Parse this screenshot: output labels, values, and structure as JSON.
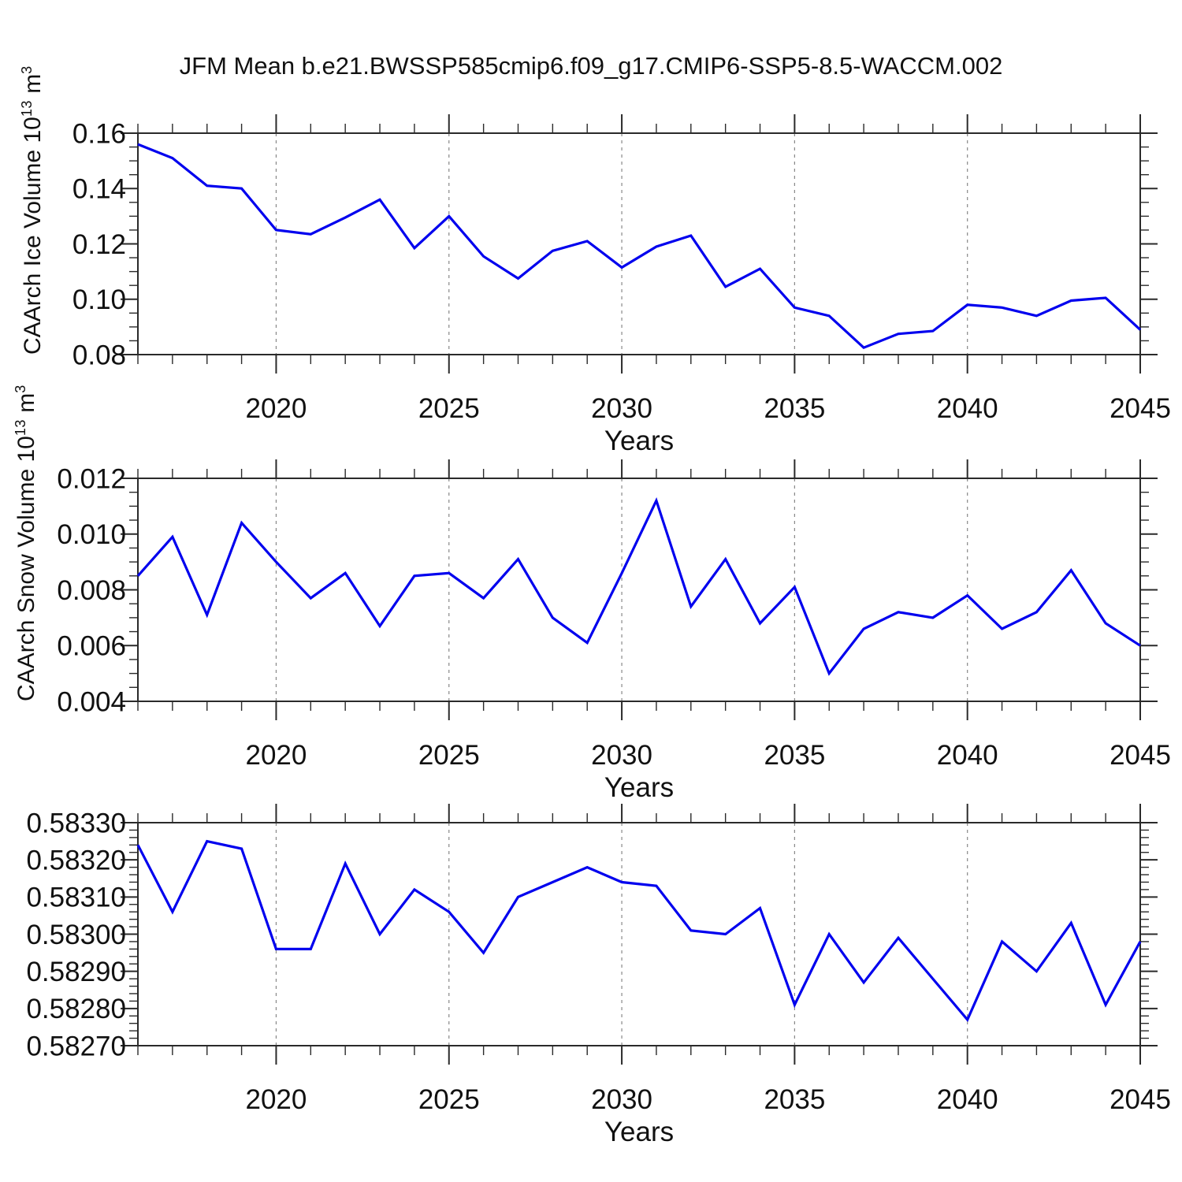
{
  "title": "JFM Mean b.e21.BWSSP585cmip6.f09_g17.CMIP6-SSP5-8.5-WACCM.002",
  "colors": {
    "line": "#0000EE",
    "grid": "#888888",
    "axis": "#2a2a2a",
    "text": "#111111"
  },
  "years": [
    2016,
    2017,
    2018,
    2019,
    2020,
    2021,
    2022,
    2023,
    2024,
    2025,
    2026,
    2027,
    2028,
    2029,
    2030,
    2031,
    2032,
    2033,
    2034,
    2035,
    2036,
    2037,
    2038,
    2039,
    2040,
    2041,
    2042,
    2043,
    2044,
    2045
  ],
  "chart_data": [
    {
      "type": "line",
      "title": "JFM Mean b.e21.BWSSP585cmip6.f09_g17.CMIP6-SSP5-8.5-WACCM.002",
      "ylabel": "CAArch Ice Volume 10^13 m^3",
      "ylabel_parts": [
        {
          "t": "CAArch Ice Volume 10"
        },
        {
          "t": "13",
          "sup": true
        },
        {
          "t": " m"
        },
        {
          "t": "3",
          "sup": true
        }
      ],
      "xlabel": "Years",
      "xlim": [
        2016,
        2045
      ],
      "ylim": [
        0.08,
        0.16
      ],
      "xticks_major": [
        2020,
        2025,
        2030,
        2035,
        2040,
        2045
      ],
      "xminor_step": 1,
      "ytick_step": 0.02,
      "yminor_step": 0.005,
      "ytick_decimals": 2,
      "grid_x": [
        2020,
        2025,
        2030,
        2035,
        2040
      ],
      "values": [
        0.156,
        0.151,
        0.141,
        0.14,
        0.125,
        0.1235,
        0.1295,
        0.136,
        0.1185,
        0.13,
        0.1155,
        0.1075,
        0.1175,
        0.121,
        0.1115,
        0.119,
        0.123,
        0.1045,
        0.111,
        0.097,
        0.094,
        0.0825,
        0.0875,
        0.0885,
        0.098,
        0.097,
        0.094,
        0.0995,
        0.1005,
        0.089
      ]
    },
    {
      "type": "line",
      "ylabel": "CAArch Snow Volume 10^13 m^3",
      "ylabel_parts": [
        {
          "t": "CAArch Snow Volume 10"
        },
        {
          "t": "13",
          "sup": true
        },
        {
          "t": " m"
        },
        {
          "t": "3",
          "sup": true
        }
      ],
      "xlabel": "Years",
      "xlim": [
        2016,
        2045
      ],
      "ylim": [
        0.004,
        0.012
      ],
      "xticks_major": [
        2020,
        2025,
        2030,
        2035,
        2040,
        2045
      ],
      "xminor_step": 1,
      "ytick_step": 0.002,
      "yminor_step": 0.0005,
      "ytick_decimals": 3,
      "grid_x": [
        2020,
        2025,
        2030,
        2035,
        2040
      ],
      "values": [
        0.0085,
        0.0099,
        0.0071,
        0.0104,
        0.009,
        0.0077,
        0.0086,
        0.0067,
        0.0085,
        0.0086,
        0.0077,
        0.0091,
        0.007,
        0.0061,
        0.0086,
        0.0112,
        0.0074,
        0.0091,
        0.0068,
        0.0081,
        0.005,
        0.0066,
        0.0072,
        0.007,
        0.0078,
        0.0066,
        0.0072,
        0.0087,
        0.0068,
        0.006
      ]
    },
    {
      "type": "line",
      "ylabel": "",
      "ylabel_parts": [],
      "xlabel": "Years",
      "xlim": [
        2016,
        2045
      ],
      "ylim": [
        0.5827,
        0.5833
      ],
      "xticks_major": [
        2020,
        2025,
        2030,
        2035,
        2040,
        2045
      ],
      "xminor_step": 1,
      "ytick_step": 0.0001,
      "yminor_step": 2e-05,
      "ytick_decimals": 5,
      "grid_x": [
        2020,
        2025,
        2030,
        2035,
        2040
      ],
      "values": [
        0.58324,
        0.58306,
        0.58325,
        0.58323,
        0.58296,
        0.58296,
        0.58319,
        0.583,
        0.58312,
        0.58306,
        0.58295,
        0.5831,
        0.58314,
        0.58318,
        0.58314,
        0.58313,
        0.58301,
        0.583,
        0.58307,
        0.58281,
        0.583,
        0.58287,
        0.58299,
        0.58288,
        0.58277,
        0.58298,
        0.5829,
        0.58303,
        0.58281,
        0.58298
      ]
    }
  ]
}
